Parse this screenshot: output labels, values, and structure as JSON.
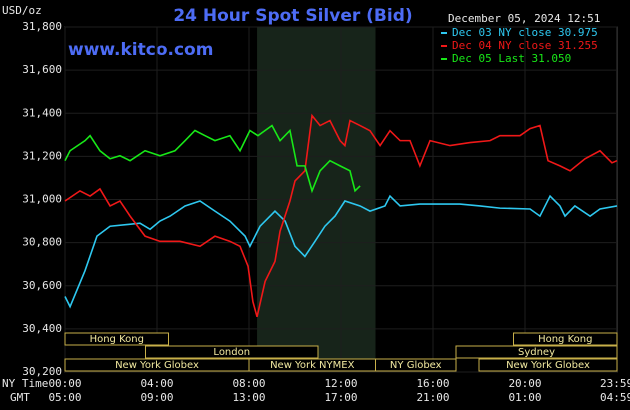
{
  "chart_data": {
    "type": "line",
    "title": "24 Hour Spot Silver (Bid)",
    "website": "www.kitco.com",
    "timestamp": "December 05, 2024 12:51",
    "y_label": "USD/oz",
    "x_row_labels": [
      "NY Time",
      "GMT"
    ],
    "xlim": [
      0,
      24
    ],
    "xticks": [
      {
        "value": 0,
        "label": "00:00"
      },
      {
        "value": 4,
        "label": "04:00"
      },
      {
        "value": 8,
        "label": "08:00"
      },
      {
        "value": 12,
        "label": "12:00"
      },
      {
        "value": 16,
        "label": "16:00"
      },
      {
        "value": 20,
        "label": "20:00"
      },
      {
        "value": 23.98,
        "label": "23:59"
      }
    ],
    "gmt_labels": [
      "05:00",
      "09:00",
      "13:00",
      "17:00",
      "21:00",
      "01:00",
      "04:59"
    ],
    "ylim": [
      30200,
      31800
    ],
    "yticks": [
      {
        "value": 30200,
        "label": "30,200"
      },
      {
        "value": 30400,
        "label": "30,400"
      },
      {
        "value": 30600,
        "label": "30,600"
      },
      {
        "value": 30800,
        "label": "30,800"
      },
      {
        "value": 31000,
        "label": "31,000"
      },
      {
        "value": 31200,
        "label": "31,200"
      },
      {
        "value": 31400,
        "label": "31,400"
      },
      {
        "value": 31600,
        "label": "31,600"
      },
      {
        "value": 31800,
        "label": "31,800"
      }
    ],
    "grid": true,
    "highlight": [
      8.35,
      13.5
    ],
    "sessions": [
      {
        "label": "Hong Kong",
        "start": 0,
        "end": 4.5,
        "row": 0
      },
      {
        "label": "Hong Kong",
        "start": 19.5,
        "end": 24,
        "row": 0
      },
      {
        "label": "London",
        "start": 3.5,
        "end": 11,
        "row": 1
      },
      {
        "label": "Sydney",
        "start": 17,
        "end": 24,
        "row": 1
      },
      {
        "label": "New York Globex",
        "start": 0,
        "end": 8,
        "row": 2
      },
      {
        "label": "New York NYMEX",
        "start": 8,
        "end": 13.5,
        "row": 2
      },
      {
        "label": "NY Globex",
        "start": 13.5,
        "end": 17,
        "row": 2
      },
      {
        "label": "New York Globex",
        "start": 18,
        "end": 24,
        "row": 2
      }
    ],
    "series": [
      {
        "name": "Dec 03 NY close 30.975",
        "color": "#2ec8f0",
        "x": [
          0,
          0.22,
          0.87,
          1.39,
          1.96,
          3.26,
          3.7,
          4.13,
          4.57,
          5.22,
          5.87,
          6.52,
          7.17,
          7.83,
          8.04,
          8.48,
          9.13,
          9.57,
          10.0,
          10.43,
          10.87,
          11.3,
          11.74,
          12.17,
          12.83,
          13.26,
          13.91,
          14.13,
          14.57,
          15.43,
          17.17,
          18.04,
          18.91,
          20.22,
          20.65,
          21.09,
          21.52,
          21.74,
          22.17,
          22.83,
          23.26,
          24.0
        ],
        "values": [
          30550,
          30503,
          30670,
          30830,
          30876,
          30890,
          30862,
          30900,
          30923,
          30970,
          30993,
          30946,
          30900,
          30830,
          30783,
          30876,
          30946,
          30900,
          30783,
          30736,
          30806,
          30876,
          30923,
          30993,
          30970,
          30946,
          30970,
          31016,
          30970,
          30979,
          30979,
          30970,
          30960,
          30956,
          30923,
          31016,
          30970,
          30923,
          30970,
          30923,
          30956,
          30970
        ]
      },
      {
        "name": "Dec 04 NY close 31.255",
        "color": "#f01818",
        "x": [
          0,
          0.65,
          1.09,
          1.52,
          1.96,
          2.39,
          2.83,
          3.48,
          4.13,
          5.0,
          5.87,
          6.52,
          7.17,
          7.61,
          7.96,
          8.17,
          8.35,
          8.7,
          9.13,
          9.35,
          9.78,
          10.0,
          10.43,
          10.74,
          11.09,
          11.52,
          11.96,
          12.17,
          12.39,
          12.83,
          13.26,
          13.7,
          14.13,
          14.57,
          15.0,
          15.43,
          15.87,
          16.74,
          17.61,
          18.48,
          18.91,
          19.78,
          20.22,
          20.65,
          21.0,
          21.52,
          21.96,
          22.61,
          23.26,
          23.78,
          24.0
        ],
        "values": [
          30993,
          31040,
          31016,
          31049,
          30970,
          30993,
          30923,
          30830,
          30806,
          30806,
          30783,
          30830,
          30806,
          30783,
          30690,
          30526,
          30456,
          30620,
          30713,
          30853,
          30993,
          31086,
          31133,
          31389,
          31343,
          31366,
          31273,
          31250,
          31366,
          31343,
          31319,
          31250,
          31319,
          31273,
          31273,
          31156,
          31273,
          31250,
          31264,
          31273,
          31296,
          31296,
          31329,
          31343,
          31180,
          31156,
          31133,
          31189,
          31226,
          31170,
          31180
        ]
      },
      {
        "name": "Dec 05 Last 31.050",
        "color": "#18e818",
        "x": [
          0,
          0.22,
          0.87,
          1.09,
          1.52,
          1.96,
          2.39,
          2.83,
          3.48,
          4.13,
          4.78,
          5.22,
          5.65,
          6.09,
          6.52,
          7.17,
          7.61,
          8.04,
          8.39,
          8.7,
          9.0,
          9.35,
          9.78,
          10.09,
          10.43,
          10.74,
          11.09,
          11.52,
          11.96,
          12.39,
          12.61,
          12.83
        ],
        "values": [
          31180,
          31226,
          31273,
          31296,
          31226,
          31189,
          31203,
          31180,
          31226,
          31203,
          31226,
          31273,
          31320,
          31296,
          31273,
          31296,
          31226,
          31320,
          31296,
          31320,
          31343,
          31273,
          31320,
          31156,
          31156,
          31040,
          31133,
          31180,
          31156,
          31133,
          31040,
          31063
        ]
      }
    ]
  }
}
